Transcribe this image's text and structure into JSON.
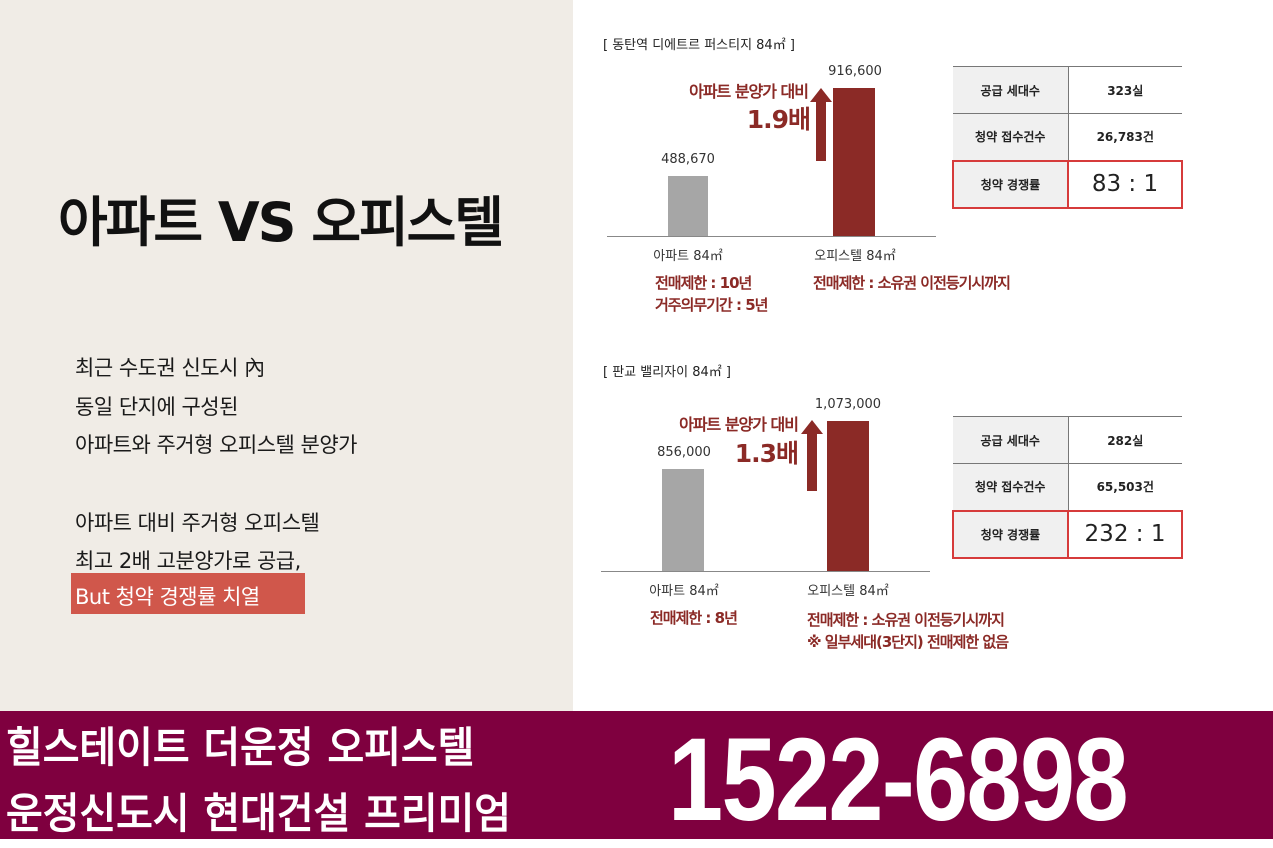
{
  "left": {
    "title": "아파트 VS 오피스텔",
    "lines": [
      "최근 수도권 신도시 內",
      "동일 단지에 구성된",
      "아파트와 주거형 오피스텔 분양가",
      "아파트 대비 주거형 오피스텔",
      "최고 2배 고분양가로 공급,"
    ],
    "highlight": "But 청약 경쟁률 치열"
  },
  "chart_data": [
    {
      "type": "bar",
      "title": "[ 동탄역 디에트르 퍼스티지 84㎡ ]",
      "categories": [
        "아파트 84㎡",
        "오피스텔 84㎡"
      ],
      "values": [
        488670,
        916600
      ],
      "value_labels": [
        "488,670",
        "916,600"
      ],
      "colors": [
        "#a6a6a6",
        "#8b2a26"
      ],
      "ylim": [
        200000,
        1000000
      ],
      "annotation": {
        "line1": "아파트 분양가 대비",
        "line2": "1.9배"
      },
      "notes": {
        "apartment": [
          "전매제한 : 10년",
          "거주의무기간 : 5년"
        ],
        "officetel": [
          "전매제한 : 소유권 이전등기시까지"
        ]
      },
      "table": [
        {
          "label": "공급 세대수",
          "value": "323실"
        },
        {
          "label": "청약 접수건수",
          "value": "26,783건"
        },
        {
          "label": "청약 경쟁률",
          "value": "83 : 1"
        }
      ]
    },
    {
      "type": "bar",
      "title": "[ 판교 밸리자이 84㎡ ]",
      "categories": [
        "아파트 84㎡",
        "오피스텔 84㎡"
      ],
      "values": [
        856000,
        1073000
      ],
      "value_labels": [
        "856,000",
        "1,073,000"
      ],
      "colors": [
        "#a6a6a6",
        "#8b2a26"
      ],
      "ylim": [
        400000,
        1100000
      ],
      "annotation": {
        "line1": "아파트 분양가 대비",
        "line2": "1.3배"
      },
      "notes": {
        "apartment": [
          "전매제한 : 8년"
        ],
        "officetel": [
          "전매제한 : 소유권 이전등기시까지",
          "※ 일부세대(3단지) 전매제한 없음"
        ]
      },
      "table": [
        {
          "label": "공급 세대수",
          "value": "282실"
        },
        {
          "label": "청약 접수건수",
          "value": "65,503건"
        },
        {
          "label": "청약 경쟁률",
          "value": "232 : 1"
        }
      ]
    }
  ],
  "banner": {
    "line1": "힐스테이트 더운정 오피스텔",
    "line2": "운정신도시 현대건설 프리미엄",
    "phone": "1522-6898",
    "color": "#7f003f"
  }
}
